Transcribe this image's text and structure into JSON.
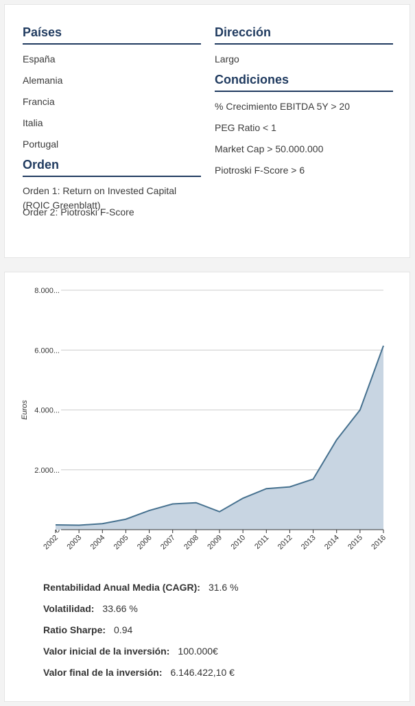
{
  "filters": {
    "countries": {
      "title": "Países",
      "items": [
        "España",
        "Alemania",
        "Francia",
        "Italia",
        "Portugal"
      ]
    },
    "direction": {
      "title": "Dirección",
      "value": "Largo"
    },
    "order": {
      "title": "Orden",
      "items": [
        "Orden 1: Return on Invested Capital (ROIC Greenblatt)",
        "Order 2: Piotroski F-Score"
      ]
    },
    "conditions": {
      "title": "Condiciones",
      "items": [
        "% Crecimiento EBITDA 5Y > 20",
        "PEG Ratio < 1",
        "Market Cap > 50.000.000",
        "Piotroski F-Score > 6"
      ]
    }
  },
  "chart_data": {
    "type": "area",
    "x": [
      "2002",
      "2003",
      "2004",
      "2005",
      "2006",
      "2007",
      "2008",
      "2009",
      "2010",
      "2011",
      "2012",
      "2013",
      "2014",
      "2015",
      "2016"
    ],
    "values": [
      160,
      150,
      200,
      350,
      640,
      860,
      900,
      600,
      1050,
      1370,
      1430,
      1690,
      3000,
      4000,
      6146
    ],
    "ylabel": "Euros",
    "ylim": [
      0,
      8000
    ],
    "yticks": [
      0,
      2000,
      4000,
      6000,
      8000
    ],
    "ytick_labels": [
      "0",
      "2.000...",
      "4.000...",
      "6.000...",
      "8.000..."
    ],
    "grid": true,
    "colors": {
      "line": "#46718f",
      "fill": "#c8d5e2",
      "grid": "#cccccc"
    }
  },
  "stats": [
    {
      "label": "Rentabilidad Anual Media (CAGR):",
      "value": "31.6 %"
    },
    {
      "label": "Volatilidad:",
      "value": "33.66 %"
    },
    {
      "label": "Ratio Sharpe:",
      "value": "0.94"
    },
    {
      "label": "Valor inicial de la inversión:",
      "value": "100.000€"
    },
    {
      "label": "Valor final de la inversión:",
      "value": "6.146.422,10 €"
    }
  ]
}
